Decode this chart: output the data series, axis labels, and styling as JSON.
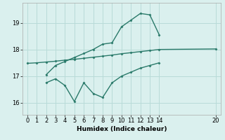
{
  "xlabel": "Humidex (Indice chaleur)",
  "bg_color": "#daf0ee",
  "grid_color": "#b8dbd8",
  "line_color": "#2a7a6a",
  "xlim": [
    -0.5,
    20.5
  ],
  "ylim": [
    15.55,
    19.75
  ],
  "yticks": [
    16,
    17,
    18,
    19
  ],
  "xticks": [
    0,
    1,
    2,
    3,
    4,
    5,
    6,
    7,
    8,
    9,
    10,
    11,
    12,
    13,
    14,
    20
  ],
  "series": [
    {
      "x": [
        0,
        1,
        2,
        3,
        4,
        5,
        6,
        7,
        8,
        9,
        10,
        11,
        12,
        13,
        14,
        20
      ],
      "y": [
        17.48,
        17.5,
        17.53,
        17.56,
        17.6,
        17.63,
        17.67,
        17.71,
        17.75,
        17.79,
        17.84,
        17.88,
        17.92,
        17.96,
        18.0,
        18.02
      ],
      "marker": "D",
      "markersize": 1.5,
      "linewidth": 1.0
    },
    {
      "x": [
        2,
        3,
        4,
        5,
        6,
        7,
        8,
        9,
        10,
        11,
        12,
        13,
        14
      ],
      "y": [
        17.05,
        17.4,
        17.55,
        17.7,
        17.85,
        18.0,
        18.2,
        18.25,
        18.85,
        19.1,
        19.35,
        19.3,
        18.55
      ],
      "marker": "D",
      "markersize": 1.5,
      "linewidth": 1.0
    },
    {
      "x": [
        2,
        3,
        4,
        5,
        6,
        7,
        8,
        9,
        10,
        11,
        12,
        13,
        14
      ],
      "y": [
        16.75,
        16.9,
        16.65,
        16.05,
        16.75,
        16.35,
        16.2,
        16.75,
        17.0,
        17.15,
        17.3,
        17.4,
        17.5
      ],
      "marker": "D",
      "markersize": 1.5,
      "linewidth": 1.0
    }
  ]
}
